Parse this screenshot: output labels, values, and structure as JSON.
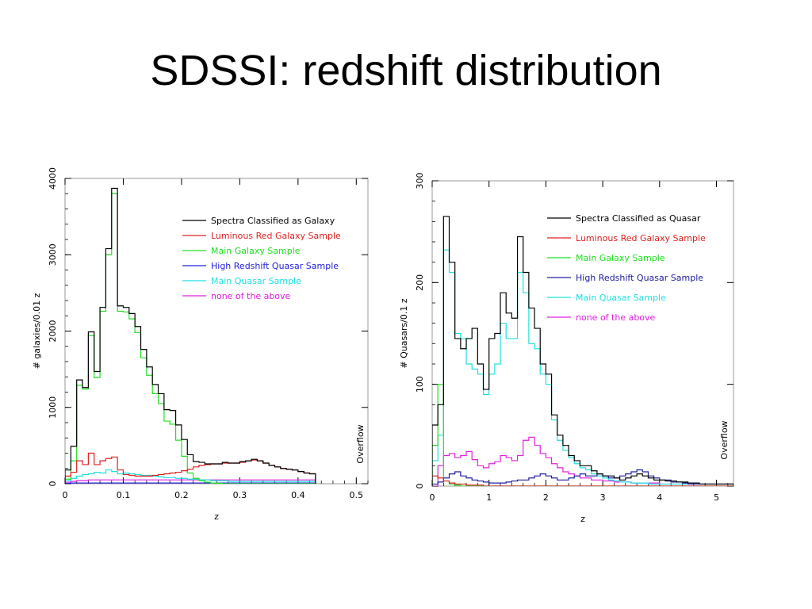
{
  "slide": {
    "title": "SDSSI: redshift distribution"
  },
  "chart_data": [
    {
      "type": "step-histogram",
      "xlabel": "z",
      "ylabel": "# galaxies/0.01 z",
      "xlim": [
        0,
        0.52
      ],
      "ylim": [
        0,
        4000
      ],
      "bin_width": 0.01,
      "x_ticks": [
        "0",
        "0.1",
        "0.2",
        "0.3",
        "0.4",
        "0.5"
      ],
      "y_ticks": [
        "0",
        "1000",
        "2000",
        "3000",
        "4000"
      ],
      "overflow_label": "Overflow",
      "legend_position": "top-right",
      "series": [
        {
          "name": "Spectra Classified as Galaxy",
          "color": "#000000",
          "values": [
            180,
            490,
            1360,
            1260,
            1990,
            1470,
            2310,
            3080,
            3870,
            2330,
            2310,
            2230,
            2060,
            1760,
            1530,
            1300,
            1180,
            970,
            960,
            770,
            580,
            380,
            290,
            280,
            260,
            260,
            260,
            280,
            270,
            270,
            290,
            300,
            320,
            300,
            270,
            240,
            220,
            200,
            190,
            180,
            160,
            140,
            130
          ]
        },
        {
          "name": "Luminous Red Galaxy Sample",
          "color": "#e02020",
          "values": [
            100,
            150,
            300,
            250,
            400,
            250,
            300,
            330,
            350,
            180,
            120,
            110,
            100,
            100,
            100,
            110,
            120,
            130,
            140,
            150,
            170,
            190,
            220,
            240,
            250,
            260,
            260,
            270,
            270,
            270,
            280,
            300,
            310,
            300,
            270,
            240,
            220,
            200,
            190,
            180,
            160,
            140,
            130
          ]
        },
        {
          "name": "Main Galaxy Sample",
          "color": "#20e020",
          "values": [
            60,
            300,
            1290,
            1240,
            1940,
            1390,
            2260,
            3000,
            3800,
            2260,
            2250,
            2160,
            1980,
            1650,
            1420,
            1180,
            1050,
            820,
            780,
            570,
            360,
            140,
            70,
            40,
            20,
            10,
            5,
            0,
            0,
            0,
            0,
            0,
            0,
            0,
            0,
            0,
            0,
            0,
            0,
            0,
            0,
            0,
            0
          ]
        },
        {
          "name": "High Redshift Quasar Sample",
          "color": "#2020e0",
          "values": [
            5,
            10,
            10,
            10,
            10,
            10,
            10,
            10,
            10,
            10,
            10,
            10,
            10,
            10,
            10,
            10,
            10,
            10,
            10,
            10,
            10,
            10,
            10,
            10,
            10,
            10,
            10,
            10,
            10,
            10,
            10,
            10,
            10,
            10,
            10,
            10,
            10,
            10,
            10,
            10,
            10,
            10,
            10
          ]
        },
        {
          "name": "Main Quasar Sample",
          "color": "#20e0e0",
          "values": [
            40,
            70,
            100,
            120,
            130,
            150,
            140,
            180,
            160,
            130,
            140,
            130,
            120,
            110,
            110,
            100,
            90,
            80,
            80,
            70,
            70,
            60,
            60,
            50,
            50,
            40,
            40,
            40,
            30,
            30,
            30,
            30,
            30,
            30,
            30,
            30,
            30,
            30,
            30,
            30,
            30,
            30,
            30
          ]
        },
        {
          "name": "none of the above",
          "color": "#e020e0",
          "values": [
            20,
            30,
            40,
            40,
            50,
            50,
            50,
            50,
            50,
            50,
            50,
            50,
            50,
            50,
            50,
            50,
            50,
            50,
            50,
            50,
            50,
            50,
            50,
            50,
            50,
            50,
            50,
            50,
            50,
            50,
            50,
            50,
            50,
            50,
            50,
            50,
            50,
            50,
            50,
            50,
            50,
            50,
            50
          ]
        }
      ]
    },
    {
      "type": "step-histogram",
      "xlabel": "z",
      "ylabel": "# Quasars/0.1 z",
      "xlim": [
        0,
        5.3
      ],
      "ylim": [
        0,
        300
      ],
      "bin_width": 0.1,
      "x_ticks": [
        "0",
        "1",
        "2",
        "3",
        "4",
        "5"
      ],
      "y_ticks": [
        "0",
        "100",
        "200",
        "300"
      ],
      "overflow_label": "Overflow",
      "legend_position": "top-right",
      "series": [
        {
          "name": "Spectra Classified as Quasar",
          "color": "#000000",
          "values": [
            60,
            80,
            265,
            220,
            145,
            135,
            145,
            155,
            120,
            95,
            145,
            150,
            190,
            170,
            165,
            245,
            210,
            175,
            155,
            120,
            110,
            70,
            50,
            40,
            30,
            25,
            20,
            20,
            15,
            12,
            10,
            10,
            8,
            6,
            8,
            10,
            12,
            10,
            8,
            6,
            6,
            5,
            5,
            4,
            4,
            3,
            3,
            2,
            2,
            2,
            2,
            2,
            2
          ]
        },
        {
          "name": "Luminous Red Galaxy Sample",
          "color": "#e02020",
          "values": [
            10,
            8,
            5,
            3,
            2,
            2,
            1,
            1,
            1,
            0,
            0,
            0,
            0,
            0,
            0,
            0,
            0,
            0,
            0,
            0,
            0,
            0,
            0,
            0,
            0,
            0,
            0,
            0,
            0,
            0,
            0,
            0,
            0,
            0,
            0,
            0,
            0,
            0,
            0,
            0,
            0,
            0,
            0,
            0,
            0,
            0,
            0,
            0,
            0,
            0,
            0,
            0,
            0
          ]
        },
        {
          "name": "Main Galaxy Sample",
          "color": "#20e020",
          "values": [
            40,
            100,
            5,
            2,
            1,
            0,
            0,
            0,
            0,
            0,
            0,
            0,
            0,
            0,
            0,
            0,
            0,
            0,
            0,
            0,
            0,
            0,
            0,
            0,
            0,
            0,
            0,
            0,
            0,
            0,
            0,
            0,
            0,
            0,
            0,
            0,
            0,
            0,
            0,
            0,
            0,
            0,
            0,
            0,
            0,
            0,
            0,
            0,
            0,
            0,
            0,
            0,
            0
          ]
        },
        {
          "name": "High Redshift Quasar Sample",
          "color": "#2020a0",
          "values": [
            2,
            4,
            8,
            12,
            14,
            10,
            8,
            6,
            5,
            4,
            3,
            3,
            3,
            4,
            5,
            6,
            6,
            8,
            10,
            12,
            10,
            8,
            6,
            6,
            8,
            10,
            12,
            10,
            10,
            12,
            10,
            8,
            8,
            10,
            12,
            14,
            16,
            14,
            10,
            8,
            6,
            6,
            4,
            4,
            3,
            2,
            2,
            2,
            2,
            2,
            2,
            2,
            2
          ]
        },
        {
          "name": "Main Quasar Sample",
          "color": "#20e0e0",
          "values": [
            25,
            50,
            232,
            210,
            150,
            145,
            120,
            115,
            110,
            90,
            110,
            120,
            160,
            145,
            145,
            210,
            190,
            140,
            135,
            110,
            100,
            65,
            45,
            35,
            28,
            22,
            18,
            16,
            12,
            10,
            8,
            6,
            5,
            4,
            4,
            3,
            3,
            3,
            2,
            2,
            2,
            2,
            2,
            2,
            2,
            2,
            2,
            2,
            2,
            2,
            2,
            2,
            2
          ]
        },
        {
          "name": "none of the above",
          "color": "#e020e0",
          "values": [
            0,
            20,
            30,
            32,
            28,
            30,
            34,
            26,
            20,
            18,
            22,
            24,
            30,
            28,
            25,
            30,
            45,
            48,
            40,
            32,
            28,
            22,
            18,
            14,
            12,
            10,
            8,
            8,
            6,
            6,
            5,
            5,
            4,
            4,
            4,
            3,
            3,
            3,
            3,
            3,
            2,
            2,
            2,
            2,
            2,
            2,
            2,
            2,
            2,
            2,
            2,
            2,
            2
          ]
        }
      ]
    }
  ]
}
